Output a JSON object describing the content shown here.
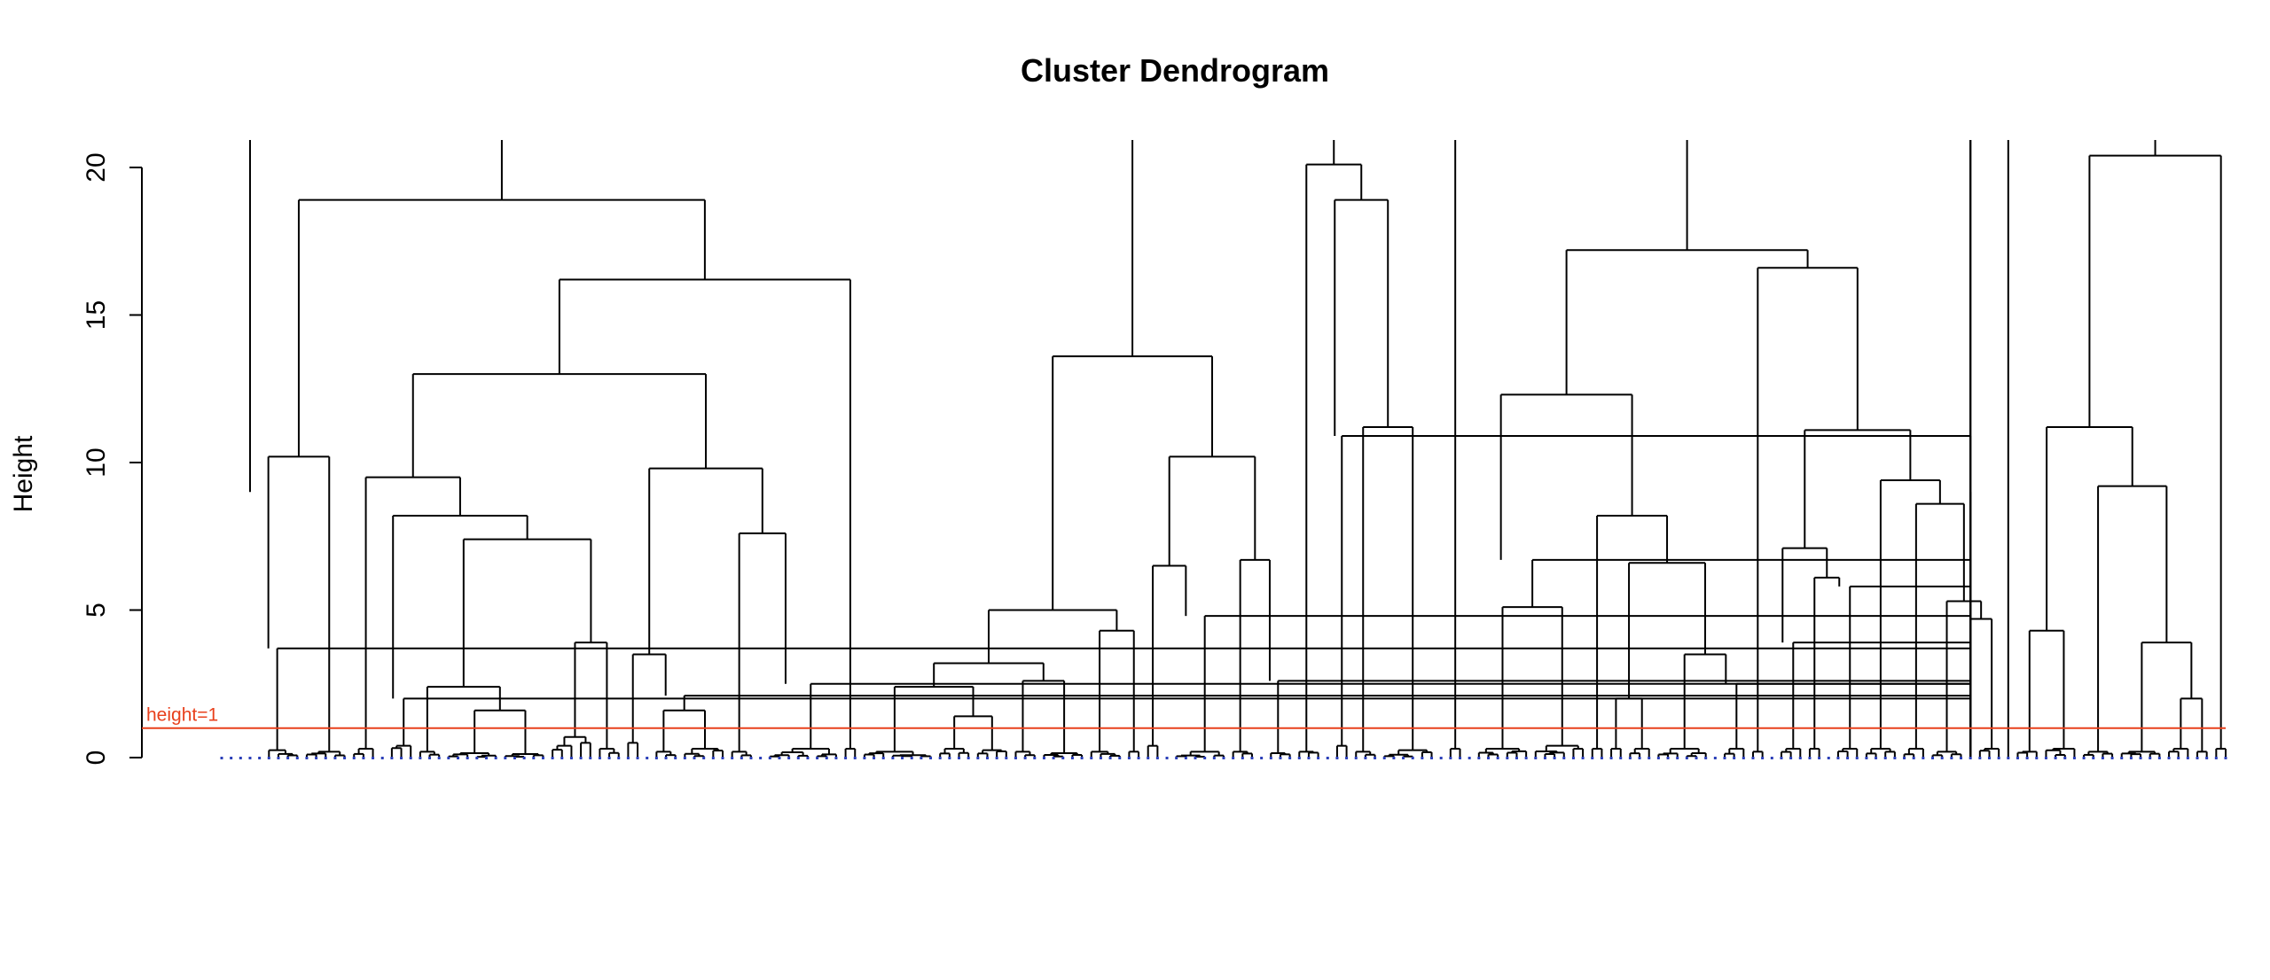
{
  "chart_data": {
    "type": "dendrogram",
    "title": "Cluster Dendrogram",
    "ylabel": "Height",
    "ylim": [
      0,
      20
    ],
    "y_ticks": [
      0,
      5,
      10,
      15,
      20
    ],
    "grid": false,
    "legend": "none",
    "cut_line": {
      "height": 1,
      "label": "height=1",
      "color": "#e8401c"
    },
    "leaf_marker_color": "#2b3fb8",
    "line_color": "#000000",
    "notes_major_merges": [
      {
        "height": 18.9
      },
      {
        "height": 16.2
      },
      {
        "height": 13.0
      },
      {
        "height": 20.1
      },
      {
        "height": 13.6
      },
      {
        "height": 18.9
      },
      {
        "height": 17.2
      },
      {
        "height": 12.3
      },
      {
        "height": 16.6
      },
      {
        "height": 20.4
      },
      {
        "height": 11.2
      },
      {
        "height": 9.2
      }
    ]
  }
}
